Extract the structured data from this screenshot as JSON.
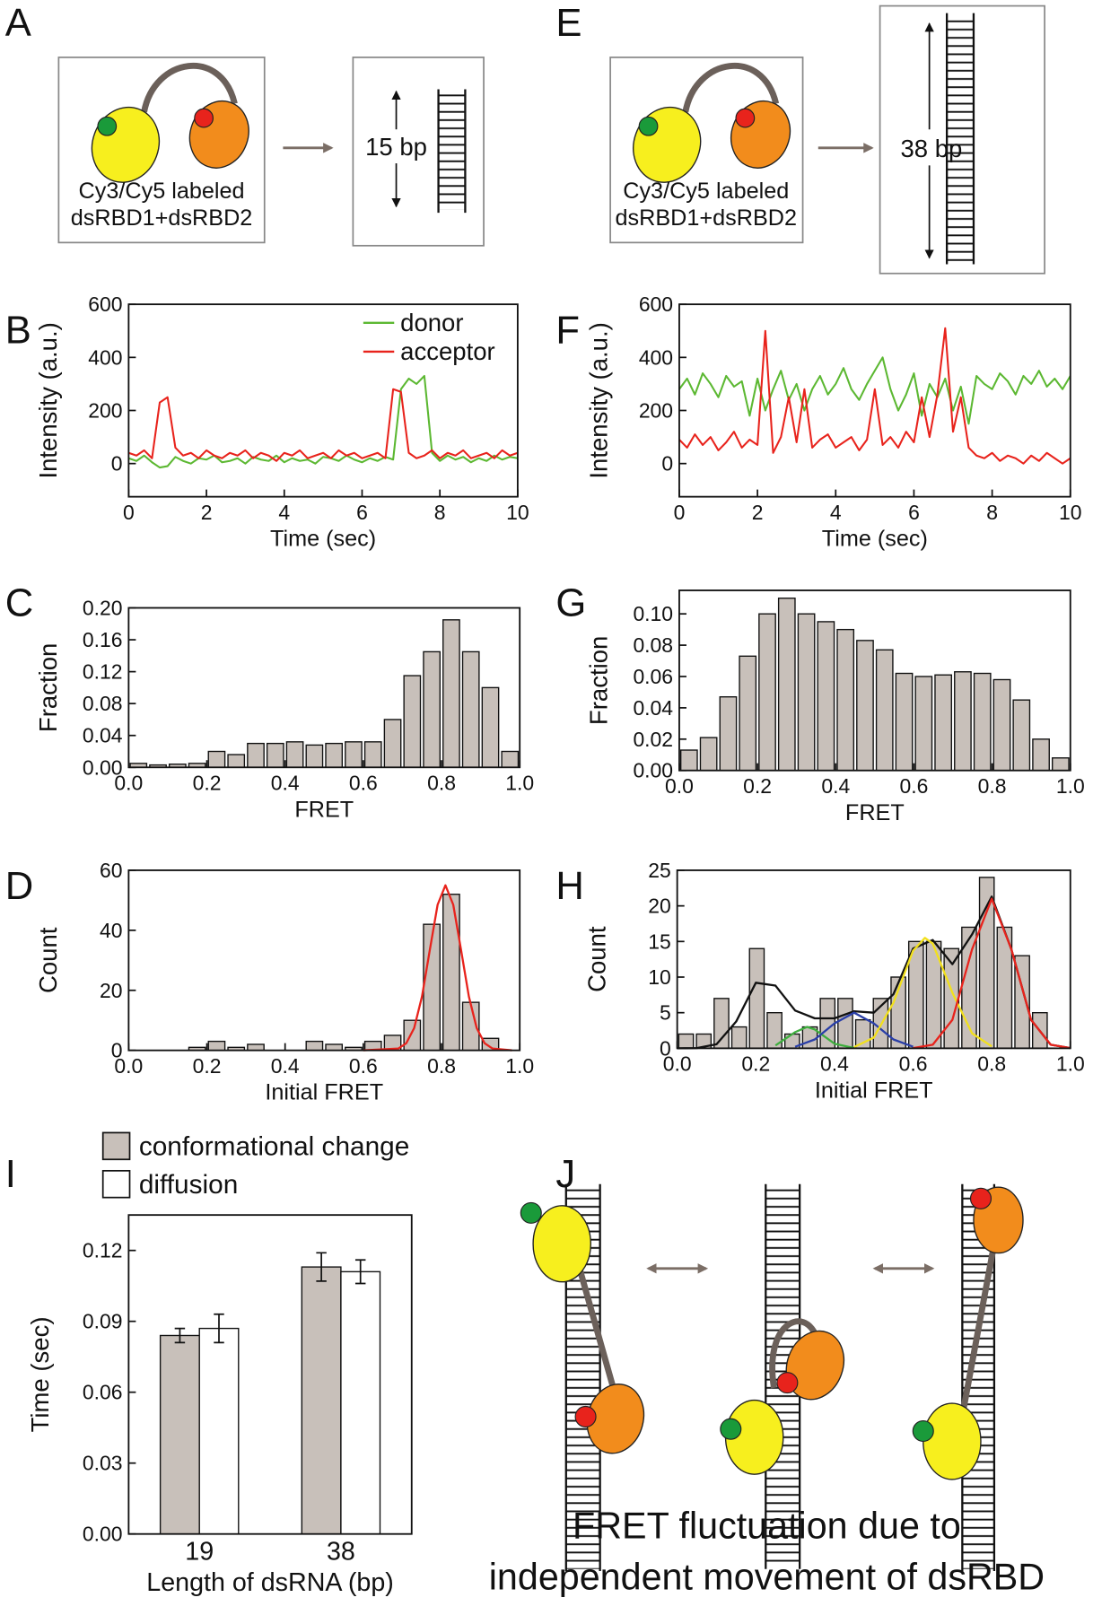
{
  "panel_labels": [
    "A",
    "B",
    "C",
    "D",
    "E",
    "F",
    "G",
    "H",
    "I",
    "J"
  ],
  "diagrams": {
    "A": {
      "label_lines": [
        "Cy3/Cy5 labeled",
        "dsRBD1+dsRBD2"
      ],
      "length": "15 bp"
    },
    "E": {
      "label_lines": [
        "Cy3/Cy5 labeled",
        "dsRBD1+dsRBD2"
      ],
      "length": "38 bp"
    },
    "J": {
      "caption_lines": [
        "FRET fluctuation due to",
        "independent movement of dsRBD"
      ]
    }
  },
  "chart_data": [
    {
      "type": "line",
      "xlabel": "Time (sec)",
      "ylabel": "Intensity (a.u.)",
      "x": [
        0,
        0.2,
        0.4,
        0.6,
        0.8,
        1,
        1.2,
        1.4,
        1.6,
        1.8,
        2,
        2.2,
        2.4,
        2.6,
        2.8,
        3,
        3.2,
        3.4,
        3.6,
        3.8,
        4,
        4.2,
        4.4,
        4.6,
        4.8,
        5,
        5.2,
        5.4,
        5.6,
        5.8,
        6,
        6.2,
        6.4,
        6.6,
        6.8,
        7,
        7.2,
        7.4,
        7.6,
        7.8,
        8,
        8.2,
        8.4,
        8.6,
        8.8,
        9,
        9.2,
        9.4,
        9.6,
        9.8,
        10
      ],
      "series": [
        {
          "name": "donor",
          "color": "#5cb832",
          "values": [
            20,
            10,
            30,
            5,
            -15,
            -10,
            25,
            10,
            0,
            20,
            15,
            30,
            5,
            10,
            20,
            0,
            25,
            15,
            10,
            30,
            5,
            20,
            10,
            15,
            0,
            25,
            20,
            10,
            30,
            15,
            5,
            20,
            10,
            25,
            15,
            280,
            320,
            300,
            330,
            40,
            10,
            30,
            15,
            25,
            5,
            20,
            10,
            30,
            15,
            25,
            20
          ]
        },
        {
          "name": "acceptor",
          "color": "#e8231c",
          "values": [
            40,
            30,
            50,
            20,
            230,
            250,
            60,
            30,
            40,
            20,
            50,
            30,
            20,
            40,
            30,
            50,
            20,
            40,
            30,
            10,
            40,
            30,
            50,
            20,
            30,
            40,
            20,
            50,
            30,
            40,
            20,
            30,
            40,
            20,
            280,
            270,
            40,
            20,
            30,
            50,
            20,
            40,
            30,
            50,
            20,
            30,
            40,
            20,
            50,
            30,
            40
          ]
        }
      ],
      "xlim": [
        0,
        10
      ],
      "xticks": [
        0,
        2,
        4,
        6,
        8,
        10
      ],
      "ylim": [
        -125,
        600
      ],
      "yticks": [
        0,
        200,
        400,
        600
      ],
      "legend": "upper right"
    },
    {
      "type": "histogram",
      "xlabel": "FRET",
      "ylabel": "Fraction",
      "color": "#c8c0ba",
      "bins": [
        0,
        0.05,
        0.1,
        0.15,
        0.2,
        0.25,
        0.3,
        0.35,
        0.4,
        0.45,
        0.5,
        0.55,
        0.6,
        0.65,
        0.7,
        0.75,
        0.8,
        0.85,
        0.9,
        0.95,
        1
      ],
      "values": [
        0.005,
        0.003,
        0.004,
        0.005,
        0.02,
        0.016,
        0.03,
        0.03,
        0.032,
        0.028,
        0.03,
        0.032,
        0.032,
        0.06,
        0.115,
        0.145,
        0.185,
        0.145,
        0.1,
        0.02
      ],
      "xlim": [
        0,
        1
      ],
      "xticks": [
        {
          "value": 0,
          "label": "0.0"
        },
        {
          "value": 0.2,
          "label": "0.2"
        },
        {
          "value": 0.4,
          "label": "0.4"
        },
        {
          "value": 0.6,
          "label": "0.6"
        },
        {
          "value": 0.8,
          "label": "0.8"
        },
        {
          "value": 1,
          "label": "1.0"
        }
      ],
      "ylim": [
        0,
        0.2
      ],
      "yticks": [
        {
          "value": 0,
          "label": "0.00"
        },
        {
          "value": 0.04,
          "label": "0.04"
        },
        {
          "value": 0.08,
          "label": "0.08"
        },
        {
          "value": 0.12,
          "label": "0.12"
        },
        {
          "value": 0.16,
          "label": "0.16"
        },
        {
          "value": 0.2,
          "label": "0.20"
        }
      ]
    },
    {
      "type": "histogram",
      "xlabel": "Initial FRET",
      "ylabel": "Count",
      "color": "#c8c0ba",
      "bins": [
        0,
        0.05,
        0.1,
        0.15,
        0.2,
        0.25,
        0.3,
        0.35,
        0.4,
        0.45,
        0.5,
        0.55,
        0.6,
        0.65,
        0.7,
        0.75,
        0.8,
        0.85,
        0.9,
        0.95,
        1
      ],
      "values": [
        0,
        0,
        0,
        1,
        3,
        1,
        2,
        0,
        0,
        3,
        2,
        1,
        3,
        5,
        10,
        42,
        52,
        16,
        4,
        0
      ],
      "fits": [
        {
          "color": "#e8231c",
          "x": [
            0.6,
            0.69,
            0.71,
            0.73,
            0.75,
            0.77,
            0.79,
            0.81,
            0.83,
            0.85,
            0.87,
            0.89,
            0.91,
            0.93,
            0.98
          ],
          "values": [
            0,
            0.61,
            2.4,
            7.4,
            17.9,
            33.4,
            48.5,
            55,
            48.5,
            33.4,
            17.9,
            7.4,
            2.4,
            0.61,
            0
          ]
        }
      ],
      "xlim": [
        0,
        1
      ],
      "xticks": [
        {
          "value": 0,
          "label": "0.0"
        },
        {
          "value": 0.2,
          "label": "0.2"
        },
        {
          "value": 0.4,
          "label": "0.4"
        },
        {
          "value": 0.6,
          "label": "0.6"
        },
        {
          "value": 0.8,
          "label": "0.8"
        },
        {
          "value": 1,
          "label": "1.0"
        }
      ],
      "ylim": [
        0,
        60
      ],
      "yticks": [
        0,
        20,
        40,
        60
      ]
    },
    {
      "type": "line",
      "xlabel": "Time (sec)",
      "ylabel": "Intensity (a.u.)",
      "x": [
        0,
        0.2,
        0.4,
        0.6,
        0.8,
        1,
        1.2,
        1.4,
        1.6,
        1.8,
        2,
        2.2,
        2.4,
        2.6,
        2.8,
        3,
        3.2,
        3.4,
        3.6,
        3.8,
        4,
        4.2,
        4.4,
        4.6,
        4.8,
        5,
        5.2,
        5.4,
        5.6,
        5.8,
        6,
        6.2,
        6.4,
        6.6,
        6.8,
        7,
        7.2,
        7.4,
        7.6,
        7.8,
        8,
        8.2,
        8.4,
        8.6,
        8.8,
        9,
        9.2,
        9.4,
        9.6,
        9.8,
        10
      ],
      "series": [
        {
          "color": "#5cb832",
          "values": [
            280,
            320,
            260,
            340,
            300,
            250,
            330,
            290,
            310,
            180,
            320,
            200,
            280,
            350,
            240,
            300,
            200,
            280,
            330,
            260,
            300,
            360,
            280,
            240,
            300,
            350,
            400,
            280,
            200,
            260,
            340,
            180,
            300,
            250,
            320,
            200,
            290,
            150,
            330,
            300,
            280,
            340,
            310,
            260,
            330,
            300,
            350,
            290,
            320,
            280,
            330
          ]
        },
        {
          "color": "#e8231c",
          "values": [
            90,
            60,
            110,
            70,
            100,
            50,
            80,
            120,
            60,
            90,
            70,
            500,
            40,
            100,
            250,
            80,
            280,
            60,
            90,
            110,
            60,
            80,
            100,
            50,
            90,
            280,
            70,
            100,
            60,
            120,
            80,
            250,
            100,
            260,
            510,
            120,
            250,
            60,
            30,
            20,
            40,
            10,
            30,
            20,
            0,
            30,
            10,
            40,
            20,
            0,
            20
          ]
        }
      ],
      "xlim": [
        0,
        10
      ],
      "xticks": [
        0,
        2,
        4,
        6,
        8,
        10
      ],
      "ylim": [
        -125,
        600
      ],
      "yticks": [
        0,
        200,
        400,
        600
      ]
    },
    {
      "type": "histogram",
      "xlabel": "FRET",
      "ylabel": "Fraction",
      "color": "#c8c0ba",
      "bins": [
        0,
        0.05,
        0.1,
        0.15,
        0.2,
        0.25,
        0.3,
        0.35,
        0.4,
        0.45,
        0.5,
        0.55,
        0.6,
        0.65,
        0.7,
        0.75,
        0.8,
        0.85,
        0.9,
        0.95,
        1
      ],
      "values": [
        0.013,
        0.021,
        0.047,
        0.073,
        0.1,
        0.11,
        0.1,
        0.095,
        0.09,
        0.083,
        0.077,
        0.062,
        0.06,
        0.061,
        0.063,
        0.062,
        0.058,
        0.045,
        0.02,
        0.008
      ],
      "xlim": [
        0,
        1
      ],
      "xticks": [
        {
          "value": 0,
          "label": "0.0"
        },
        {
          "value": 0.2,
          "label": "0.2"
        },
        {
          "value": 0.4,
          "label": "0.4"
        },
        {
          "value": 0.6,
          "label": "0.6"
        },
        {
          "value": 0.8,
          "label": "0.8"
        },
        {
          "value": 1,
          "label": "1.0"
        }
      ],
      "ylim": [
        0,
        0.115
      ],
      "yticks": [
        {
          "value": 0,
          "label": "0.00"
        },
        {
          "value": 0.02,
          "label": "0.02"
        },
        {
          "value": 0.04,
          "label": "0.04"
        },
        {
          "value": 0.06,
          "label": "0.06"
        },
        {
          "value": 0.08,
          "label": "0.08"
        },
        {
          "value": 0.1,
          "label": "0.10"
        }
      ]
    },
    {
      "type": "histogram",
      "xlabel": "Initial FRET",
      "ylabel": "Count",
      "color": "#c8c0ba",
      "bins": [
        0,
        0.045,
        0.09,
        0.135,
        0.18,
        0.225,
        0.27,
        0.315,
        0.36,
        0.405,
        0.45,
        0.495,
        0.54,
        0.585,
        0.63,
        0.675,
        0.72,
        0.765,
        0.81,
        0.855,
        0.9,
        0.945
      ],
      "values": [
        2,
        2,
        7,
        3,
        14,
        5,
        2,
        3,
        7,
        7,
        4,
        7,
        10,
        15,
        15,
        14,
        17,
        24,
        17,
        13,
        5
      ],
      "fits": [
        {
          "color": "#111111",
          "x": [
            0,
            0.05,
            0.1,
            0.15,
            0.2,
            0.25,
            0.3,
            0.35,
            0.4,
            0.45,
            0.5,
            0.55,
            0.6,
            0.65,
            0.7,
            0.75,
            0.8,
            0.85,
            0.9,
            0.95,
            1
          ],
          "values": [
            0,
            0.03,
            0.56,
            3.75,
            9.2,
            8.8,
            5.3,
            4.2,
            4.2,
            5.2,
            5,
            7.6,
            14,
            15.2,
            11.8,
            16,
            21.3,
            13.9,
            4,
            0.51,
            0.03
          ]
        },
        {
          "color": "#3fae3f",
          "x": [
            0.25,
            0.3,
            0.33,
            0.35,
            0.4,
            0.45
          ],
          "values": [
            0.41,
            2.27,
            3,
            2.65,
            0.65,
            0.03
          ]
        },
        {
          "color": "#2a3fa8",
          "x": [
            0.3,
            0.35,
            0.4,
            0.45,
            0.5,
            0.55,
            0.6
          ],
          "values": [
            0.22,
            1.25,
            3.5,
            5,
            3.5,
            1.25,
            0.22
          ]
        },
        {
          "color": "#f2e01c",
          "x": [
            0.45,
            0.5,
            0.55,
            0.6,
            0.63,
            0.65,
            0.7,
            0.75,
            0.8
          ],
          "values": [
            0.17,
            1.5,
            6.4,
            13.7,
            15.5,
            14.7,
            7.8,
            2.1,
            0.28
          ]
        },
        {
          "color": "#e8231c",
          "x": [
            0.6,
            0.65,
            0.7,
            0.75,
            0.8,
            0.85,
            0.9,
            0.95,
            1
          ],
          "values": [
            0.03,
            0.51,
            4,
            13.9,
            21,
            13.9,
            4,
            0.51,
            0.03
          ]
        }
      ],
      "xlim": [
        0,
        1
      ],
      "xticks": [
        {
          "value": 0,
          "label": "0.0"
        },
        {
          "value": 0.2,
          "label": "0.2"
        },
        {
          "value": 0.4,
          "label": "0.4"
        },
        {
          "value": 0.6,
          "label": "0.6"
        },
        {
          "value": 0.8,
          "label": "0.8"
        },
        {
          "value": 1,
          "label": "1.0"
        }
      ],
      "ylim": [
        0,
        25
      ],
      "yticks": [
        0,
        5,
        10,
        15,
        20,
        25
      ]
    },
    {
      "type": "bar",
      "xlabel": "Length of dsRNA (bp)",
      "ylabel": "Time (sec)",
      "categories": [
        "19",
        "38"
      ],
      "series": [
        {
          "name": "conformational change",
          "color": "#c8c0ba",
          "values": [
            0.084,
            0.113
          ],
          "errors": [
            0.003,
            0.006
          ]
        },
        {
          "name": "diffusion",
          "color": "#ffffff",
          "values": [
            0.087,
            0.111
          ],
          "errors": [
            0.006,
            0.005
          ]
        }
      ],
      "ylim": [
        0,
        0.135
      ],
      "yticks": [
        {
          "value": 0,
          "label": "0.00"
        },
        {
          "value": 0.03,
          "label": "0.03"
        },
        {
          "value": 0.06,
          "label": "0.06"
        },
        {
          "value": 0.09,
          "label": "0.09"
        },
        {
          "value": 0.12,
          "label": "0.12"
        }
      ],
      "legend": "top"
    }
  ]
}
